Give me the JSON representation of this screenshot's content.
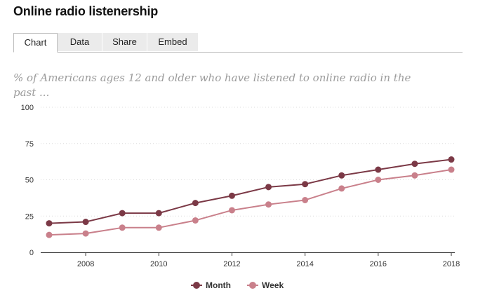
{
  "header": {
    "title": "Online radio listenership"
  },
  "tabs": [
    {
      "label": "Chart",
      "active": true
    },
    {
      "label": "Data",
      "active": false
    },
    {
      "label": "Share",
      "active": false
    },
    {
      "label": "Embed",
      "active": false
    }
  ],
  "subtitle": "% of Americans ages 12 and older who have listened to online radio in the past ...",
  "colors": {
    "month": "#7b3946",
    "week": "#c9808b",
    "grid": "#dcdcdc",
    "axis": "#333333"
  },
  "chart_data": {
    "type": "line",
    "title": "Online radio listenership",
    "subtitle": "% of Americans ages 12 and older who have listened to online radio in the past ...",
    "x": [
      2007,
      2008,
      2009,
      2010,
      2011,
      2012,
      2013,
      2014,
      2015,
      2016,
      2017,
      2018
    ],
    "xticks": [
      "2008",
      "2010",
      "2012",
      "2014",
      "2016",
      "2018"
    ],
    "yticks": [
      "0",
      "25",
      "50",
      "75",
      "100"
    ],
    "ylim": [
      0,
      100
    ],
    "xlim": [
      2007,
      2018
    ],
    "xlabel": "",
    "ylabel": "",
    "grid": true,
    "legend_position": "bottom-center",
    "series": [
      {
        "name": "Month",
        "values": [
          20,
          21,
          27,
          27,
          34,
          39,
          45,
          47,
          53,
          57,
          61,
          64
        ]
      },
      {
        "name": "Week",
        "values": [
          12,
          13,
          17,
          17,
          22,
          29,
          33,
          36,
          44,
          50,
          53,
          57
        ]
      }
    ]
  }
}
